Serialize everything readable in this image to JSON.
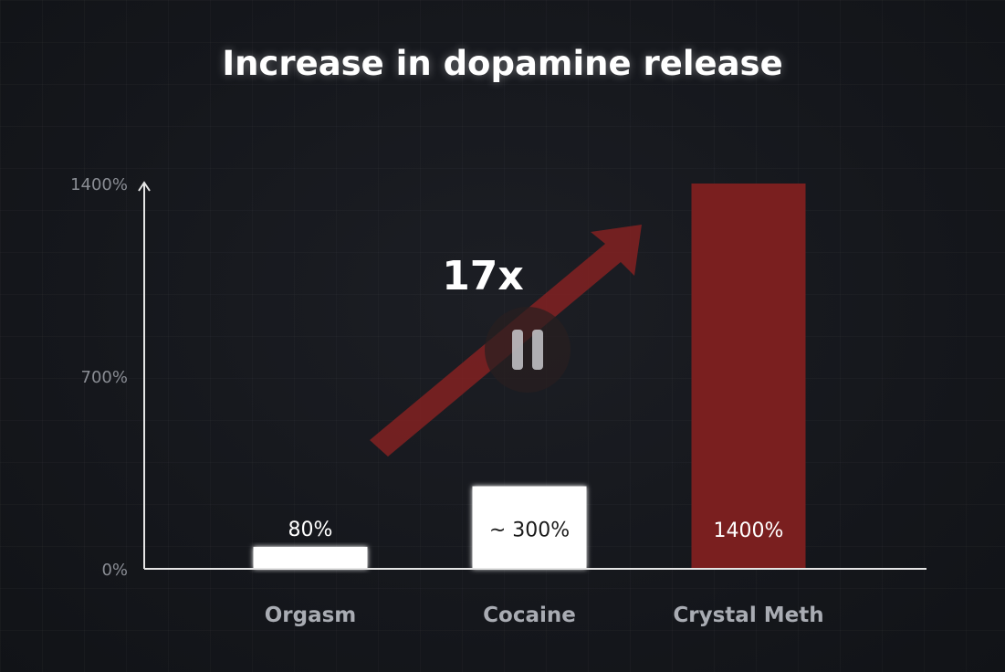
{
  "chart_data": {
    "type": "bar",
    "title": "Increase in dopamine release",
    "categories": [
      "Orgasm",
      "Cocaine",
      "Crystal Meth"
    ],
    "values": [
      80,
      300,
      1400
    ],
    "data_labels": [
      "80%",
      "~ 300%",
      "1400%"
    ],
    "yticks": [
      {
        "value": 0,
        "label": "0%"
      },
      {
        "value": 700,
        "label": "700%"
      },
      {
        "value": 1400,
        "label": "1400%"
      }
    ],
    "ylim": [
      0,
      1400
    ],
    "xlabel": "",
    "ylabel": "",
    "grid": false,
    "annotation": {
      "text": "17x",
      "arrow": true
    },
    "colors": {
      "bar_default": "#ffffff",
      "bar_highlight": "#7a1f1f",
      "arrow": "#8a2222",
      "axis": "#e6e6e6",
      "tick_label": "#8a8d94",
      "category_label": "#a9acb3",
      "bar_label_dark": "#1a1a1a",
      "bar_label_light": "#ffffff"
    }
  },
  "player": {
    "pause_icon": "pause-icon"
  }
}
